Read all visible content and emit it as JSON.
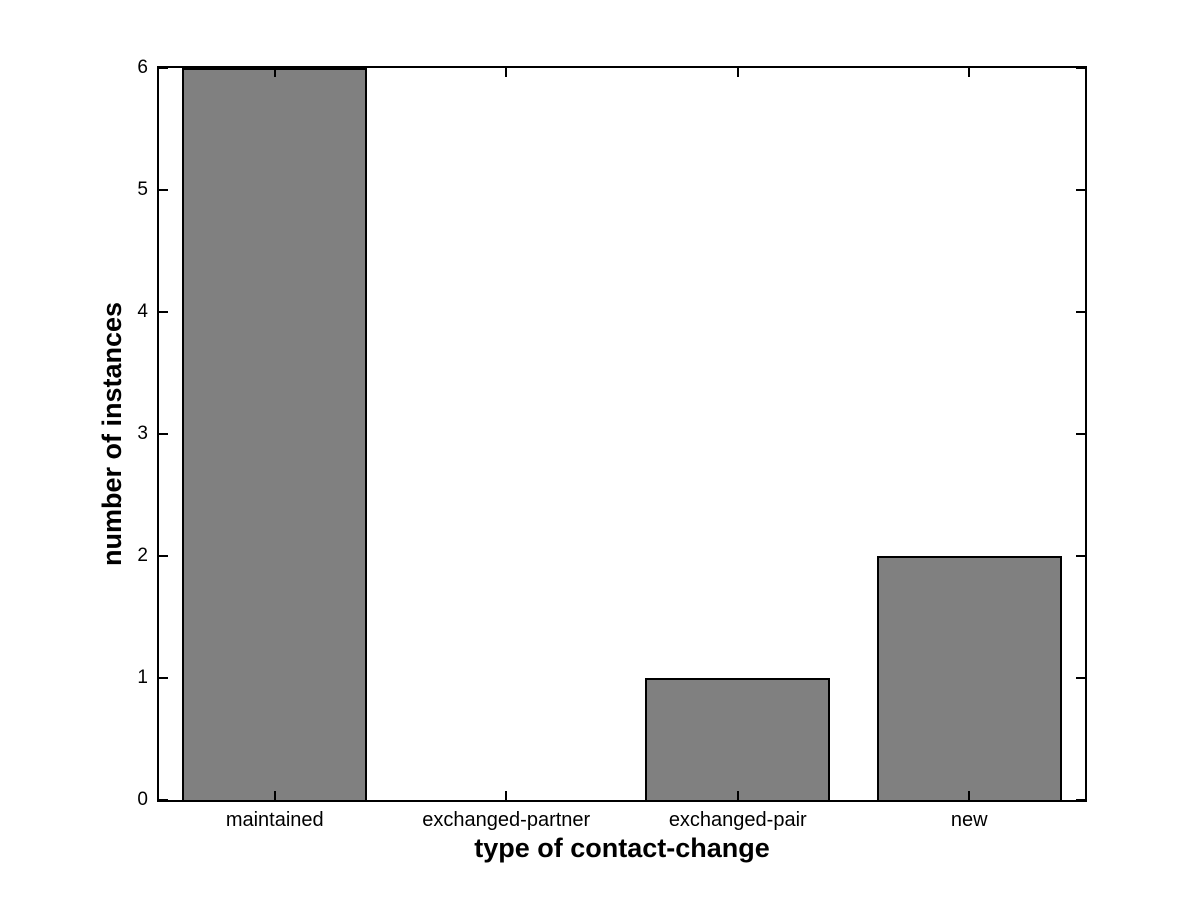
{
  "chart_data": {
    "type": "bar",
    "title": "",
    "xlabel": "type of contact-change",
    "ylabel": "number of instances",
    "categories": [
      "maintained",
      "exchanged-partner",
      "exchanged-pair",
      "new"
    ],
    "values": [
      6,
      0,
      1,
      2
    ],
    "ylim": [
      0,
      6
    ],
    "y_ticks": [
      0,
      1,
      2,
      3,
      4,
      5,
      6
    ],
    "bar_width_fraction": 0.8,
    "grid": false,
    "legend": null,
    "colors": {
      "bar_fill": "#808080",
      "bar_edge": "#000000",
      "axis": "#000000",
      "background": "#ffffff",
      "text": "#000000"
    }
  }
}
